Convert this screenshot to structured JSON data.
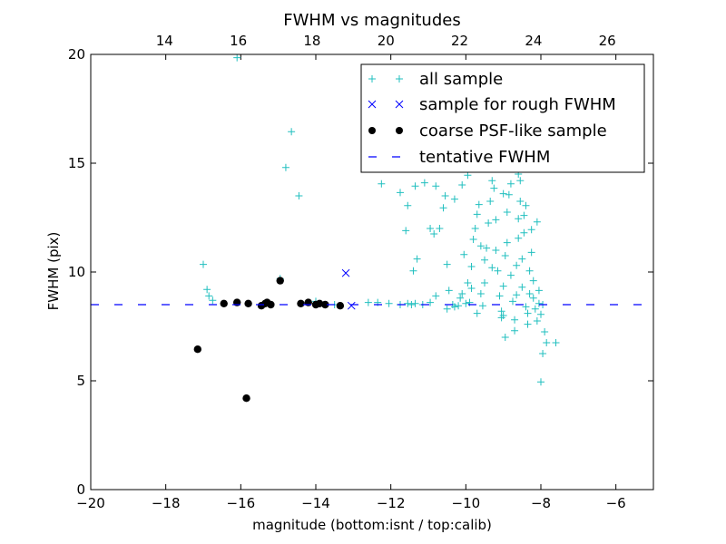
{
  "chart_data": {
    "type": "scatter",
    "title": "FWHM vs magnitudes",
    "xlabel": "magnitude (bottom:isnt / top:calib)",
    "ylabel": "FWHM (pix)",
    "xlim": [
      -20,
      -5
    ],
    "ylim": [
      0,
      20
    ],
    "x_ticks": [
      -20,
      -18,
      -16,
      -14,
      -12,
      -10,
      -8,
      -6
    ],
    "x_tick_labels": [
      "−20",
      "−18",
      "−16",
      "−14",
      "−12",
      "−10",
      "−8",
      "−6"
    ],
    "y_ticks": [
      0,
      5,
      10,
      15,
      20
    ],
    "y_tick_labels": [
      "0",
      "5",
      "10",
      "15",
      "20"
    ],
    "top_axis": {
      "lim": [
        12.0,
        27.25
      ],
      "ticks": [
        14,
        16,
        18,
        20,
        22,
        24,
        26
      ],
      "tick_labels": [
        "14",
        "16",
        "18",
        "20",
        "22",
        "24",
        "26"
      ]
    },
    "grid": false,
    "legend_position": "top-right",
    "series": [
      {
        "name": "all sample",
        "marker": "plus",
        "color": "#20BFBF",
        "points": [
          [
            -17.0,
            10.35
          ],
          [
            -16.9,
            9.2
          ],
          [
            -16.85,
            8.9
          ],
          [
            -16.75,
            8.7
          ],
          [
            -16.1,
            19.85
          ],
          [
            -14.95,
            9.7
          ],
          [
            -14.8,
            14.8
          ],
          [
            -14.65,
            16.45
          ],
          [
            -14.45,
            13.5
          ],
          [
            -14.0,
            8.65
          ],
          [
            -13.5,
            8.5
          ],
          [
            -12.6,
            8.6
          ],
          [
            -12.35,
            8.6
          ],
          [
            -12.25,
            14.05
          ],
          [
            -12.05,
            8.55
          ],
          [
            -11.75,
            13.65
          ],
          [
            -11.55,
            13.05
          ],
          [
            -11.35,
            13.95
          ],
          [
            -11.1,
            14.1
          ],
          [
            -11.75,
            8.5
          ],
          [
            -11.55,
            8.55
          ],
          [
            -11.45,
            8.5
          ],
          [
            -11.35,
            8.55
          ],
          [
            -11.15,
            8.5
          ],
          [
            -11.6,
            11.9
          ],
          [
            -11.4,
            10.05
          ],
          [
            -11.3,
            10.6
          ],
          [
            -10.95,
            8.6
          ],
          [
            -10.8,
            8.9
          ],
          [
            -10.95,
            12.0
          ],
          [
            -10.8,
            13.95
          ],
          [
            -10.55,
            13.5
          ],
          [
            -10.6,
            12.95
          ],
          [
            -10.3,
            13.35
          ],
          [
            -10.1,
            14.0
          ],
          [
            -9.95,
            14.45
          ],
          [
            -10.15,
            8.8
          ],
          [
            -10.0,
            8.55
          ],
          [
            -9.9,
            8.6
          ],
          [
            -10.7,
            12.0
          ],
          [
            -10.85,
            11.75
          ],
          [
            -10.5,
            10.35
          ],
          [
            -10.45,
            9.15
          ],
          [
            -10.35,
            8.5
          ],
          [
            -10.3,
            8.4
          ],
          [
            -10.5,
            8.3
          ],
          [
            -10.2,
            8.45
          ],
          [
            -10.1,
            9.0
          ],
          [
            -9.95,
            9.5
          ],
          [
            -9.85,
            10.25
          ],
          [
            -9.8,
            11.5
          ],
          [
            -9.75,
            12.0
          ],
          [
            -9.7,
            12.65
          ],
          [
            -9.65,
            13.1
          ],
          [
            -9.6,
            9.0
          ],
          [
            -9.55,
            8.45
          ],
          [
            -9.5,
            9.5
          ],
          [
            -9.5,
            10.55
          ],
          [
            -9.45,
            11.1
          ],
          [
            -9.4,
            12.25
          ],
          [
            -9.35,
            13.25
          ],
          [
            -9.3,
            14.2
          ],
          [
            -9.25,
            13.85
          ],
          [
            -9.2,
            12.4
          ],
          [
            -9.2,
            11.0
          ],
          [
            -9.15,
            10.05
          ],
          [
            -9.1,
            8.9
          ],
          [
            -9.05,
            8.2
          ],
          [
            -9.0,
            8.0
          ],
          [
            -9.0,
            9.35
          ],
          [
            -8.95,
            10.75
          ],
          [
            -8.9,
            11.35
          ],
          [
            -8.9,
            12.75
          ],
          [
            -8.85,
            13.55
          ],
          [
            -8.8,
            14.05
          ],
          [
            -8.8,
            9.85
          ],
          [
            -8.75,
            8.65
          ],
          [
            -8.7,
            7.8
          ],
          [
            -8.7,
            7.3
          ],
          [
            -8.65,
            8.95
          ],
          [
            -8.65,
            10.3
          ],
          [
            -8.6,
            11.55
          ],
          [
            -8.6,
            12.45
          ],
          [
            -8.55,
            13.25
          ],
          [
            -8.55,
            14.2
          ],
          [
            -8.5,
            9.3
          ],
          [
            -8.5,
            10.6
          ],
          [
            -8.45,
            11.8
          ],
          [
            -8.45,
            12.6
          ],
          [
            -8.4,
            13.05
          ],
          [
            -8.4,
            8.4
          ],
          [
            -8.35,
            8.1
          ],
          [
            -8.35,
            7.6
          ],
          [
            -8.3,
            9.0
          ],
          [
            -8.3,
            10.05
          ],
          [
            -8.25,
            10.9
          ],
          [
            -8.25,
            11.95
          ],
          [
            -8.2,
            9.6
          ],
          [
            -8.2,
            8.8
          ],
          [
            -8.15,
            8.3
          ],
          [
            -8.1,
            7.75
          ],
          [
            -8.05,
            8.55
          ],
          [
            -8.05,
            9.15
          ],
          [
            -8.0,
            8.05
          ],
          [
            -7.95,
            8.5
          ],
          [
            -7.9,
            7.25
          ],
          [
            -7.85,
            6.75
          ],
          [
            -7.95,
            6.25
          ],
          [
            -8.0,
            4.95
          ],
          [
            -7.6,
            6.75
          ],
          [
            -8.1,
            12.3
          ],
          [
            -8.6,
            14.5
          ],
          [
            -9.0,
            13.6
          ],
          [
            -9.3,
            10.2
          ],
          [
            -9.6,
            11.2
          ],
          [
            -9.85,
            9.25
          ],
          [
            -10.05,
            10.8
          ],
          [
            -9.7,
            8.1
          ],
          [
            -9.05,
            7.9
          ],
          [
            -8.95,
            7.0
          ]
        ]
      },
      {
        "name": "sample for rough FWHM",
        "marker": "x",
        "color": "#0000FF",
        "points": [
          [
            -13.2,
            9.95
          ],
          [
            -13.05,
            8.45
          ]
        ]
      },
      {
        "name": "coarse PSF-like sample",
        "marker": "circle",
        "color": "#000000",
        "points": [
          [
            -17.15,
            6.45
          ],
          [
            -16.45,
            8.55
          ],
          [
            -16.1,
            8.6
          ],
          [
            -15.8,
            8.55
          ],
          [
            -15.85,
            4.2
          ],
          [
            -15.45,
            8.45
          ],
          [
            -15.35,
            8.55
          ],
          [
            -15.3,
            8.6
          ],
          [
            -15.2,
            8.5
          ],
          [
            -14.95,
            9.6
          ],
          [
            -14.4,
            8.55
          ],
          [
            -14.2,
            8.6
          ],
          [
            -14.0,
            8.5
          ],
          [
            -13.9,
            8.55
          ],
          [
            -13.75,
            8.5
          ],
          [
            -13.35,
            8.45
          ]
        ]
      },
      {
        "name": "tentative FWHM",
        "type": "hline",
        "style": "dashed",
        "color": "#0000FF",
        "y": 8.5
      }
    ]
  }
}
